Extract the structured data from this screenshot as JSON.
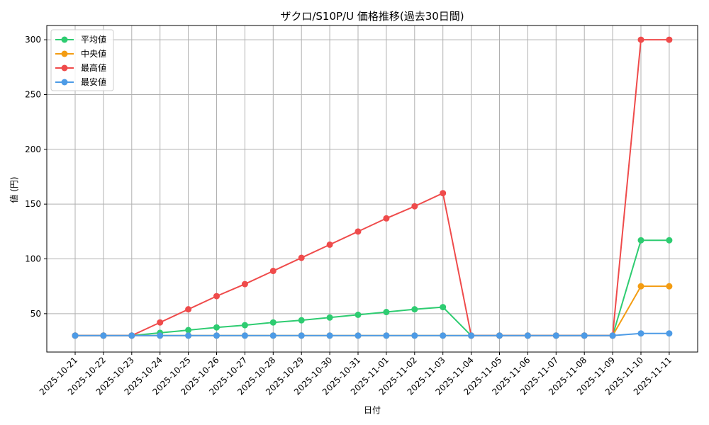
{
  "chart_data": {
    "type": "line",
    "title": "ザクロ/S10P/U 価格推移(過去30日間)",
    "xlabel": "日付",
    "ylabel": "値 (円)",
    "categories": [
      "2025-10-21",
      "2025-10-22",
      "2025-10-23",
      "2025-10-24",
      "2025-10-25",
      "2025-10-26",
      "2025-10-27",
      "2025-10-28",
      "2025-10-29",
      "2025-10-30",
      "2025-10-31",
      "2025-11-01",
      "2025-11-02",
      "2025-11-03",
      "2025-11-04",
      "2025-11-05",
      "2025-11-06",
      "2025-11-07",
      "2025-11-08",
      "2025-11-09",
      "2025-11-10",
      "2025-11-11"
    ],
    "ylim": [
      15,
      313
    ],
    "yticks": [
      50,
      100,
      150,
      200,
      250,
      300
    ],
    "grid": true,
    "legend_position": "top-left",
    "series": [
      {
        "name": "平均値",
        "color": "#2ecc71",
        "values": [
          30,
          30,
          30,
          32.5,
          35,
          37.5,
          39.5,
          42,
          44,
          46.5,
          49,
          51.5,
          54,
          56,
          30,
          30,
          30,
          30,
          30,
          30,
          117,
          117
        ]
      },
      {
        "name": "中央値",
        "color": "#f39c12",
        "values": [
          30,
          30,
          30,
          30,
          30,
          30,
          30,
          30,
          30,
          30,
          30,
          30,
          30,
          30,
          30,
          30,
          30,
          30,
          30,
          30,
          75,
          75
        ]
      },
      {
        "name": "最高値",
        "color": "#ef4b4b",
        "values": [
          30,
          30,
          30,
          42,
          54,
          66,
          77,
          89,
          101,
          113,
          125,
          137,
          148,
          160,
          30,
          30,
          30,
          30,
          30,
          30,
          300,
          300
        ]
      },
      {
        "name": "最安値",
        "color": "#4d9be6",
        "values": [
          30,
          30,
          30,
          30,
          30,
          30,
          30,
          30,
          30,
          30,
          30,
          30,
          30,
          30,
          30,
          30,
          30,
          30,
          30,
          30,
          32,
          32
        ]
      }
    ]
  }
}
